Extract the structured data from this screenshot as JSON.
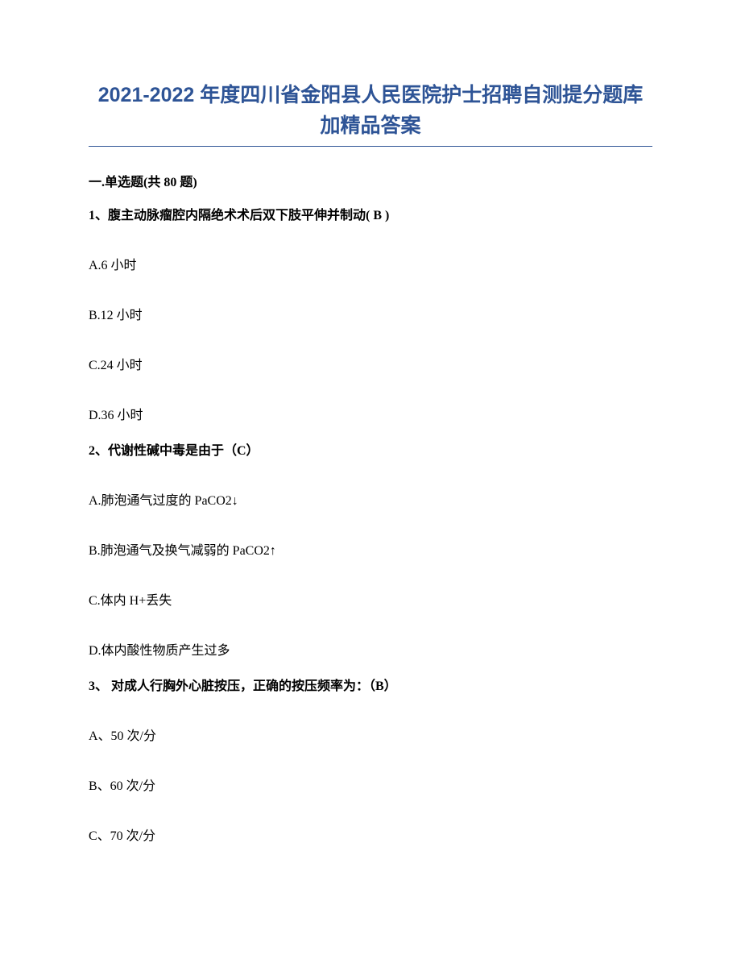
{
  "title": "2021-2022 年度四川省金阳县人民医院护士招聘自测提分题库加精品答案",
  "section_header": "一.单选题(共 80 题)",
  "questions": [
    {
      "stem": "1、腹主动脉瘤腔内隔绝术术后双下肢平伸并制动(  B  )",
      "options": [
        "A.6 小时",
        "B.12 小时",
        "C.24 小时",
        "D.36 小时"
      ]
    },
    {
      "stem": "2、代谢性碱中毒是由于（C）",
      "options": [
        "A.肺泡通气过度的 PaCO2↓",
        "B.肺泡通气及换气减弱的 PaCO2↑",
        "C.体内 H+丢失",
        "D.体内酸性物质产生过多"
      ]
    },
    {
      "stem": "3、 对成人行胸外心脏按压，正确的按压频率为：（B）",
      "options": [
        "A、50 次/分",
        "B、60 次/分",
        "C、70 次/分"
      ]
    }
  ],
  "colors": {
    "title_color": "#2e5496",
    "underline_color": "#2e5496",
    "body_text_color": "#000000",
    "background_color": "#ffffff"
  },
  "typography": {
    "title_fontsize": 25,
    "body_fontsize": 16,
    "title_weight": "bold",
    "question_weight": "bold"
  }
}
